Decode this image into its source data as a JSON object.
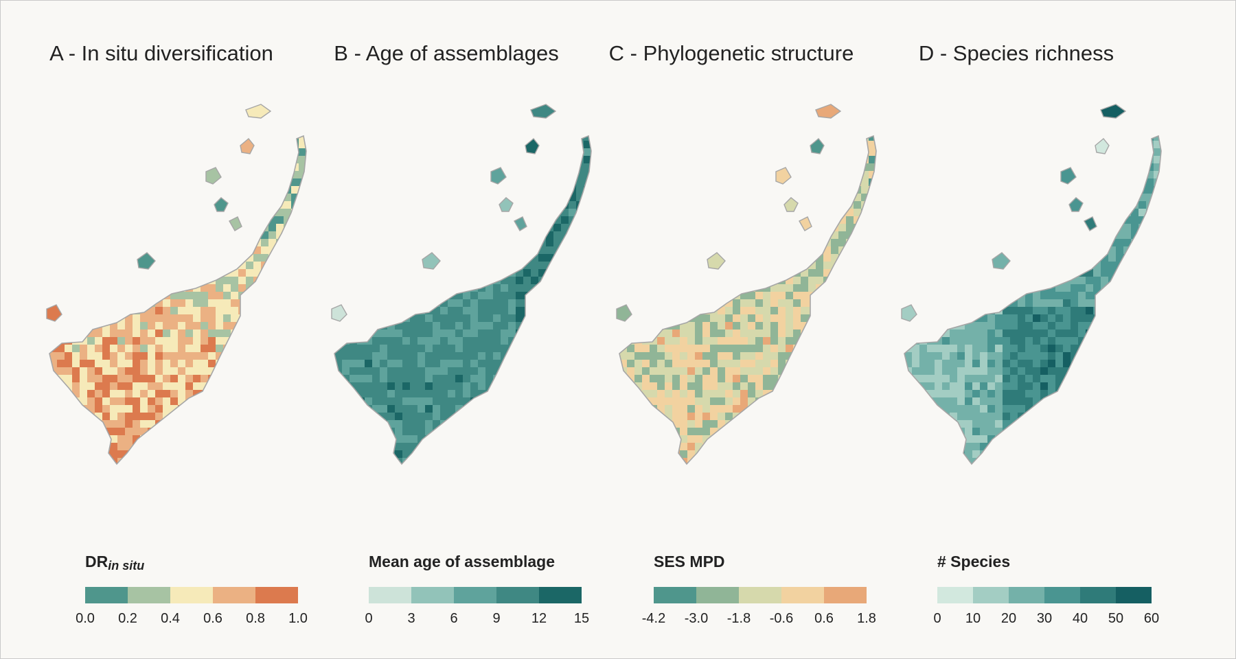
{
  "panels": [
    {
      "title": "A - In situ diversification",
      "legend_title_main": "DR",
      "legend_title_sub": "in situ",
      "colors": [
        "#4f968c",
        "#a7c3a3",
        "#f6eab9",
        "#ebb183",
        "#dc7a4e"
      ],
      "ticks": [
        "0.0",
        "0.2",
        "0.4",
        "0.6",
        "0.8",
        "1.0"
      ]
    },
    {
      "title": "B - Age of assemblages",
      "legend_title_main": "Mean age of assemblage",
      "legend_title_sub": "",
      "colors": [
        "#cde3d9",
        "#92c3b9",
        "#5fa39c",
        "#3f8883",
        "#1b6766"
      ],
      "ticks": [
        "0",
        "3",
        "6",
        "9",
        "12",
        "15"
      ]
    },
    {
      "title": "C - Phylogenetic structure",
      "legend_title_main": "SES MPD",
      "legend_title_sub": "",
      "colors": [
        "#4f968c",
        "#90b597",
        "#d6d9ac",
        "#f2d2a0",
        "#e8a878"
      ],
      "ticks": [
        "-4.2",
        "-3.0",
        "-1.8",
        "-0.6",
        "0.6",
        "1.8"
      ]
    },
    {
      "title": "D - Species richness",
      "legend_title_main": "# Species",
      "legend_title_sub": "",
      "colors": [
        "#d2e8de",
        "#a3cdc3",
        "#74b1a9",
        "#4a9591",
        "#2f7b79",
        "#155f62"
      ],
      "ticks": [
        "0",
        "10",
        "20",
        "30",
        "40",
        "50",
        "60"
      ]
    }
  ]
}
